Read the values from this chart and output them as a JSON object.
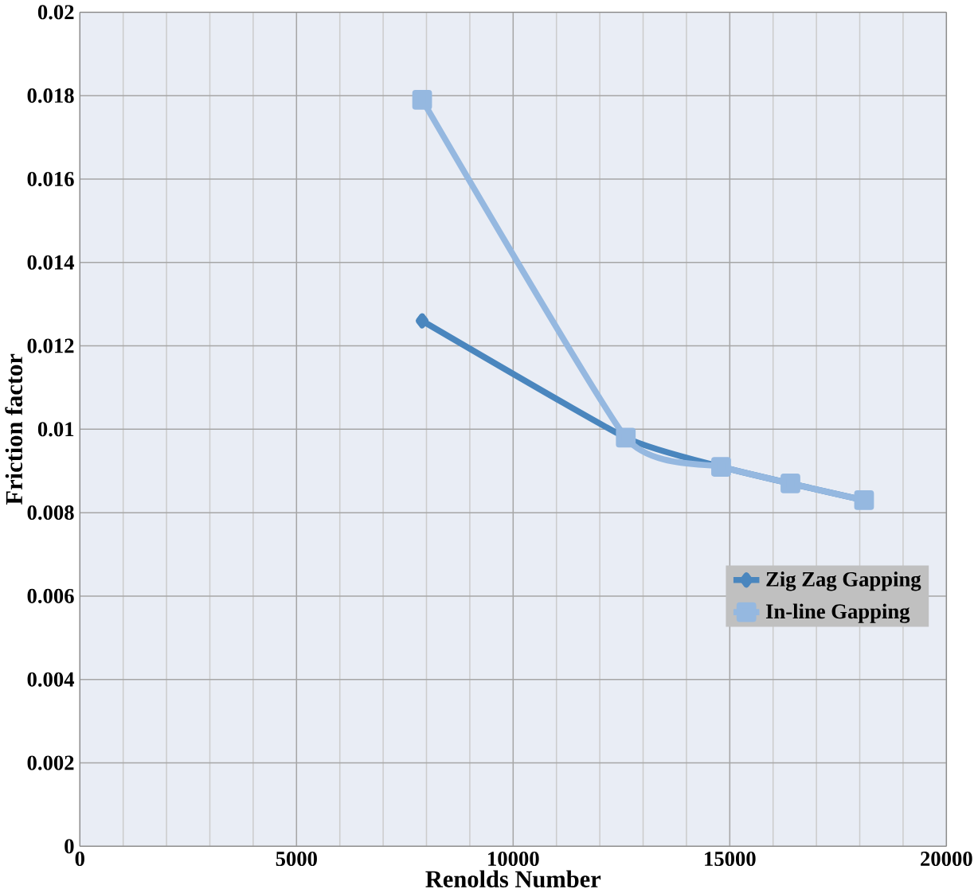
{
  "chart_data": {
    "type": "line",
    "xlabel": "Renolds Number",
    "ylabel": "Friction factor",
    "xlim": [
      0,
      20000
    ],
    "xticks": [
      0,
      5000,
      10000,
      15000,
      20000
    ],
    "ylim": [
      0,
      0.02
    ],
    "yticks": [
      0,
      0.002,
      0.004,
      0.006,
      0.008,
      0.01,
      0.012,
      0.014,
      0.016,
      0.018,
      0.02
    ],
    "grid": true,
    "legend": "right",
    "series": [
      {
        "name": "Zig Zag Gapping",
        "color": "#4a86be",
        "marker": "diamond",
        "x": [
          7900,
          12600,
          14800,
          16400,
          18100
        ],
        "values": [
          0.0126,
          0.0098,
          0.0091,
          0.0087,
          0.0083
        ]
      },
      {
        "name": "In-line Gapping",
        "color": "#95b8e0",
        "marker": "square",
        "x": [
          7900,
          12600,
          14800,
          16400,
          18100
        ],
        "values": [
          0.0179,
          0.0098,
          0.0091,
          0.0087,
          0.0083
        ]
      }
    ]
  }
}
